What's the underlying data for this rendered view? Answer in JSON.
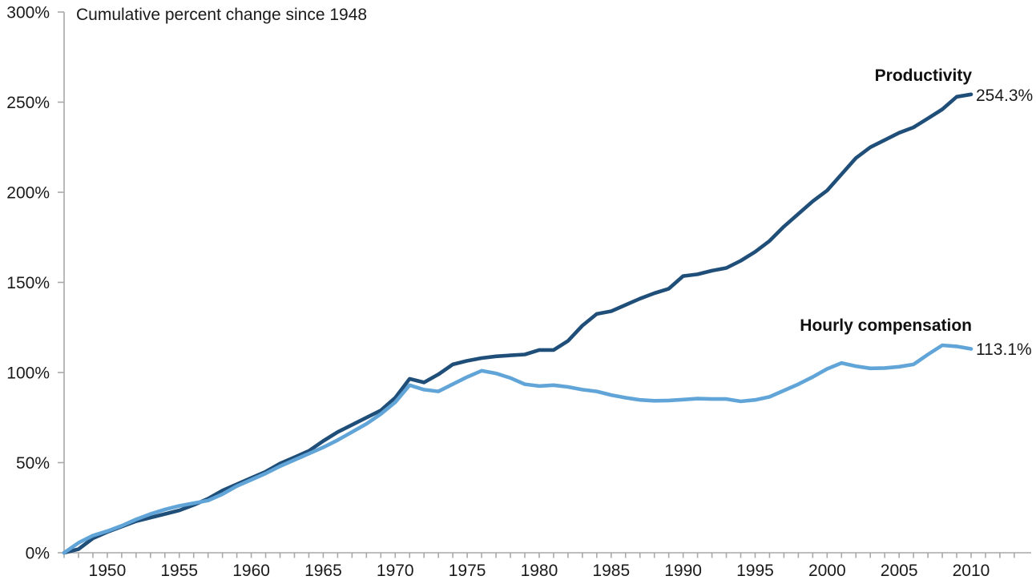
{
  "chart_data": {
    "type": "line",
    "title": "Cumulative percent change since 1948",
    "xlabel": "",
    "ylabel": "",
    "ylim": [
      0,
      300
    ],
    "grid": false,
    "legend_position": "inline-end-of-line-labels",
    "axis_color": "#a8a8a8",
    "text_color": "#1a1a1a",
    "x": [
      1948,
      1949,
      1950,
      1951,
      1952,
      1953,
      1954,
      1955,
      1956,
      1957,
      1958,
      1959,
      1960,
      1961,
      1962,
      1963,
      1964,
      1965,
      1966,
      1967,
      1968,
      1969,
      1970,
      1971,
      1972,
      1973,
      1974,
      1975,
      1976,
      1977,
      1978,
      1979,
      1980,
      1981,
      1982,
      1983,
      1984,
      1985,
      1986,
      1987,
      1988,
      1989,
      1990,
      1991,
      1992,
      1993,
      1994,
      1995,
      1996,
      1997,
      1998,
      1999,
      2000,
      2001,
      2002,
      2003,
      2004,
      2005,
      2006,
      2007,
      2008,
      2009,
      2010,
      2011
    ],
    "xticks": [
      1950,
      1955,
      1960,
      1965,
      1970,
      1975,
      1980,
      1985,
      1990,
      1995,
      2000,
      2005,
      2010
    ],
    "yticks": [
      {
        "value": 0,
        "label": "0%"
      },
      {
        "value": 50,
        "label": "50%"
      },
      {
        "value": 100,
        "label": "100%"
      },
      {
        "value": 150,
        "label": "150%"
      },
      {
        "value": 200,
        "label": "200%"
      },
      {
        "value": 250,
        "label": "250%"
      },
      {
        "value": 300,
        "label": "300%"
      }
    ],
    "series": [
      {
        "name": "Productivity",
        "color": "#1F4E79",
        "end_label": "254.3%",
        "end_value": 254.3,
        "values": [
          0,
          2,
          8,
          11.5,
          14.5,
          17.5,
          19.5,
          21.5,
          23.5,
          26.5,
          30,
          34.5,
          38,
          41.5,
          45,
          49.5,
          53,
          56.5,
          62,
          67,
          71,
          75,
          79,
          86,
          96.5,
          94.5,
          99,
          104.5,
          106.5,
          108,
          109,
          109.5,
          110,
          112.5,
          112.5,
          117.5,
          126,
          132.5,
          134,
          137.5,
          141,
          144,
          146.5,
          153.5,
          154.5,
          156.5,
          158,
          162,
          167,
          173,
          181,
          188,
          195,
          201,
          210,
          219,
          225,
          229,
          233,
          236,
          241,
          246,
          253,
          254.3
        ]
      },
      {
        "name": "Hourly compensation",
        "color": "#61A5D8",
        "end_label": "113.1%",
        "end_value": 113.1,
        "values": [
          0,
          5.5,
          9.5,
          12,
          15,
          18.5,
          21.5,
          24,
          26,
          27.5,
          29,
          32.5,
          37,
          40.5,
          44,
          48,
          51.5,
          55,
          58.5,
          62.5,
          67,
          71.5,
          77,
          83.5,
          93,
          90.5,
          89.5,
          93.5,
          97.5,
          101,
          99.5,
          97,
          93.5,
          92.5,
          93,
          92,
          90.5,
          89.5,
          87.5,
          86,
          84.8,
          84.3,
          84.5,
          85,
          85.5,
          85.3,
          85.3,
          84,
          84.8,
          86.5,
          90,
          93.5,
          97.5,
          102,
          105.3,
          103.5,
          102.3,
          102.5,
          103.2,
          104.5,
          110,
          115.1,
          114.5,
          113.1
        ]
      }
    ]
  }
}
